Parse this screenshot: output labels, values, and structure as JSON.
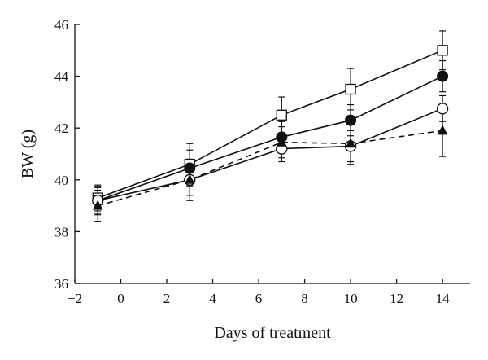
{
  "chart_data": {
    "type": "line",
    "title": "",
    "xlabel": "Days of treatment",
    "ylabel": "BW (g)",
    "xlim": [
      -2,
      15.2
    ],
    "ylim": [
      36,
      46
    ],
    "xticks": [
      -2,
      0,
      2,
      4,
      6,
      8,
      10,
      12,
      14
    ],
    "xtick_labels": [
      "−2",
      "0",
      "2",
      "4",
      "6",
      "8",
      "10",
      "12",
      "14"
    ],
    "yticks": [
      36,
      38,
      40,
      42,
      44,
      46
    ],
    "ytick_labels": [
      "36",
      "38",
      "40",
      "42",
      "44",
      "46"
    ],
    "grid": false,
    "legend": "none",
    "x": [
      -1,
      3,
      7,
      10,
      14
    ],
    "series": [
      {
        "marker": "open-square",
        "line_style": "solid",
        "color": "#111111",
        "values": [
          39.3,
          40.6,
          42.5,
          43.5,
          45.0
        ],
        "error": [
          0.5,
          0.8,
          0.7,
          0.8,
          0.75
        ]
      },
      {
        "marker": "filled-circle",
        "line_style": "solid",
        "color": "#111111",
        "values": [
          39.2,
          40.45,
          41.65,
          42.3,
          44.0
        ],
        "error": [
          0.5,
          0.7,
          0.6,
          0.6,
          0.6
        ]
      },
      {
        "marker": "open-circle",
        "line_style": "solid",
        "color": "#111111",
        "values": [
          39.2,
          40.0,
          41.2,
          41.3,
          42.75
        ],
        "error": [
          0.55,
          0.8,
          0.5,
          0.6,
          0.5
        ]
      },
      {
        "marker": "filled-triangle",
        "line_style": "dashed",
        "color": "#111111",
        "values": [
          39.0,
          40.0,
          41.45,
          41.4,
          41.9
        ],
        "error": [
          0.6,
          0.6,
          0.6,
          0.8,
          1.0
        ]
      }
    ]
  }
}
